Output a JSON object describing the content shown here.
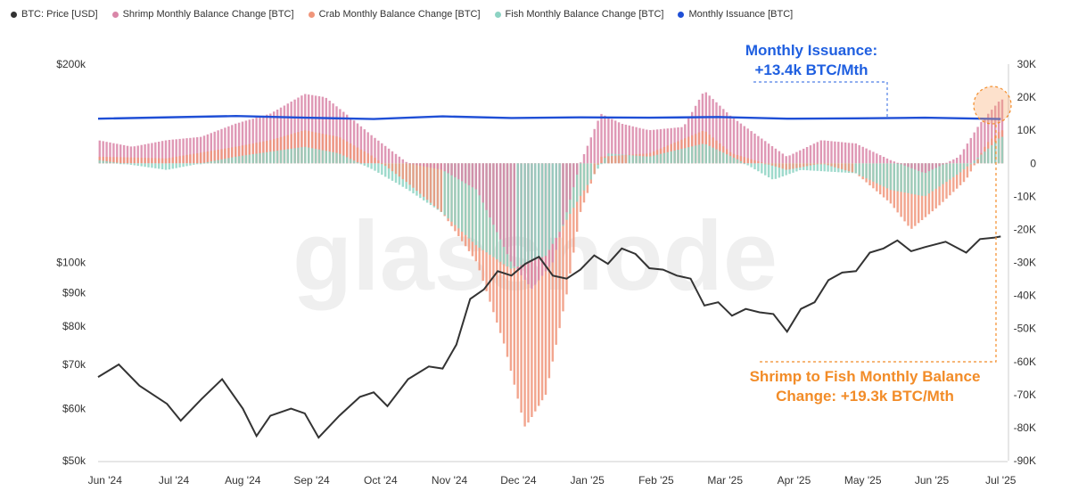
{
  "legend": [
    {
      "label": "BTC: Price [USD]",
      "color": "#333333"
    },
    {
      "label": "Shrimp Monthly Balance Change [BTC]",
      "color": "#d986a8"
    },
    {
      "label": "Crab Monthly Balance Change [BTC]",
      "color": "#f0957a"
    },
    {
      "label": "Fish Monthly Balance Change [BTC]",
      "color": "#8dd3c3"
    },
    {
      "label": "Monthly Issuance [BTC]",
      "color": "#1f4fd6"
    }
  ],
  "watermark": "glassnode",
  "annotations": {
    "issuance_line1": "Monthly Issuance:",
    "issuance_line2": "+13.4k BTC/Mth",
    "shrimp_line1": "Shrimp to Fish Monthly Balance",
    "shrimp_line2": "Change: +19.3k BTC/Mth"
  },
  "chart_data": {
    "type": "bar",
    "x_labels": [
      "Jun '24",
      "Jul '24",
      "Aug '24",
      "Sep '24",
      "Oct '24",
      "Nov '24",
      "Dec '24",
      "Jan '25",
      "Feb '25",
      "Mar '25",
      "Apr '25",
      "May '25",
      "Jun '25",
      "Jul '25"
    ],
    "left_axis": {
      "label": "BTC: Price [USD]",
      "scale": "log",
      "ticks": [
        {
          "value": 50000,
          "label": "$50k"
        },
        {
          "value": 60000,
          "label": "$60k"
        },
        {
          "value": 70000,
          "label": "$70k"
        },
        {
          "value": 80000,
          "label": "$80k"
        },
        {
          "value": 90000,
          "label": "$90k"
        },
        {
          "value": 100000,
          "label": "$100k"
        },
        {
          "value": 200000,
          "label": "$200k"
        }
      ],
      "range": [
        50000,
        200000
      ]
    },
    "right_axis": {
      "label": "Monthly Balance Change [BTC]",
      "scale": "linear",
      "ticks": [
        {
          "value": 30000,
          "label": "30K"
        },
        {
          "value": 20000,
          "label": "20K"
        },
        {
          "value": 10000,
          "label": "10K"
        },
        {
          "value": 0,
          "label": "0"
        },
        {
          "value": -10000,
          "label": "-10K"
        },
        {
          "value": -20000,
          "label": "-20K"
        },
        {
          "value": -30000,
          "label": "-30K"
        },
        {
          "value": -40000,
          "label": "-40K"
        },
        {
          "value": -50000,
          "label": "-50K"
        },
        {
          "value": -60000,
          "label": "-60K"
        },
        {
          "value": -70000,
          "label": "-70K"
        },
        {
          "value": -80000,
          "label": "-80K"
        },
        {
          "value": -90000,
          "label": "-90K"
        }
      ],
      "range": [
        -90000,
        30000
      ]
    },
    "price_series": {
      "name": "BTC: Price [USD]",
      "color": "#333333",
      "points": [
        {
          "t": 0.0,
          "v": 67000
        },
        {
          "t": 0.3,
          "v": 70000
        },
        {
          "t": 0.6,
          "v": 65000
        },
        {
          "t": 1.0,
          "v": 61000
        },
        {
          "t": 1.2,
          "v": 57500
        },
        {
          "t": 1.5,
          "v": 62000
        },
        {
          "t": 1.8,
          "v": 66500
        },
        {
          "t": 2.1,
          "v": 60000
        },
        {
          "t": 2.3,
          "v": 54500
        },
        {
          "t": 2.5,
          "v": 58500
        },
        {
          "t": 2.8,
          "v": 60000
        },
        {
          "t": 3.0,
          "v": 59000
        },
        {
          "t": 3.2,
          "v": 54200
        },
        {
          "t": 3.5,
          "v": 58500
        },
        {
          "t": 3.8,
          "v": 62500
        },
        {
          "t": 4.0,
          "v": 63500
        },
        {
          "t": 4.2,
          "v": 60500
        },
        {
          "t": 4.5,
          "v": 66500
        },
        {
          "t": 4.8,
          "v": 69500
        },
        {
          "t": 5.0,
          "v": 69000
        },
        {
          "t": 5.2,
          "v": 75000
        },
        {
          "t": 5.4,
          "v": 88000
        },
        {
          "t": 5.6,
          "v": 91000
        },
        {
          "t": 5.8,
          "v": 97000
        },
        {
          "t": 6.0,
          "v": 95500
        },
        {
          "t": 6.2,
          "v": 99500
        },
        {
          "t": 6.4,
          "v": 102000
        },
        {
          "t": 6.6,
          "v": 95500
        },
        {
          "t": 6.8,
          "v": 94500
        },
        {
          "t": 7.0,
          "v": 97500
        },
        {
          "t": 7.2,
          "v": 102500
        },
        {
          "t": 7.4,
          "v": 99500
        },
        {
          "t": 7.6,
          "v": 105000
        },
        {
          "t": 7.8,
          "v": 103000
        },
        {
          "t": 8.0,
          "v": 98000
        },
        {
          "t": 8.2,
          "v": 97500
        },
        {
          "t": 8.4,
          "v": 95500
        },
        {
          "t": 8.6,
          "v": 94500
        },
        {
          "t": 8.8,
          "v": 86000
        },
        {
          "t": 9.0,
          "v": 87000
        },
        {
          "t": 9.2,
          "v": 83000
        },
        {
          "t": 9.4,
          "v": 85000
        },
        {
          "t": 9.6,
          "v": 84000
        },
        {
          "t": 9.8,
          "v": 83500
        },
        {
          "t": 10.0,
          "v": 78500
        },
        {
          "t": 10.2,
          "v": 85000
        },
        {
          "t": 10.4,
          "v": 87000
        },
        {
          "t": 10.6,
          "v": 94000
        },
        {
          "t": 10.8,
          "v": 96500
        },
        {
          "t": 11.0,
          "v": 97000
        },
        {
          "t": 11.2,
          "v": 103500
        },
        {
          "t": 11.4,
          "v": 105000
        },
        {
          "t": 11.6,
          "v": 108000
        },
        {
          "t": 11.8,
          "v": 104000
        },
        {
          "t": 12.0,
          "v": 105500
        },
        {
          "t": 12.3,
          "v": 107500
        },
        {
          "t": 12.6,
          "v": 103500
        },
        {
          "t": 12.8,
          "v": 108500
        },
        {
          "t": 13.0,
          "v": 109000
        },
        {
          "t": 13.1,
          "v": 109500
        }
      ]
    },
    "issuance_series": {
      "name": "Monthly Issuance [BTC]",
      "color": "#1f4fd6",
      "points": [
        {
          "t": 0.0,
          "v": 13500
        },
        {
          "t": 2.0,
          "v": 14300
        },
        {
          "t": 3.0,
          "v": 13800
        },
        {
          "t": 4.0,
          "v": 13400
        },
        {
          "t": 5.0,
          "v": 14200
        },
        {
          "t": 6.0,
          "v": 13700
        },
        {
          "t": 7.0,
          "v": 13900
        },
        {
          "t": 8.0,
          "v": 13800
        },
        {
          "t": 9.0,
          "v": 14000
        },
        {
          "t": 10.0,
          "v": 13500
        },
        {
          "t": 11.0,
          "v": 13600
        },
        {
          "t": 12.0,
          "v": 13800
        },
        {
          "t": 13.1,
          "v": 13400
        }
      ]
    },
    "cohort_series": [
      {
        "name": "Shrimp Monthly Balance Change [BTC]",
        "color": "#d986a8",
        "points": [
          {
            "t": 0.0,
            "v": 7000
          },
          {
            "t": 0.5,
            "v": 5000
          },
          {
            "t": 1.0,
            "v": 7000
          },
          {
            "t": 1.5,
            "v": 8000
          },
          {
            "t": 2.0,
            "v": 12000
          },
          {
            "t": 2.5,
            "v": 15000
          },
          {
            "t": 3.0,
            "v": 21000
          },
          {
            "t": 3.3,
            "v": 20000
          },
          {
            "t": 3.6,
            "v": 15000
          },
          {
            "t": 4.0,
            "v": 8000
          },
          {
            "t": 4.5,
            "v": 0
          },
          {
            "t": 5.0,
            "v": -2000
          },
          {
            "t": 5.5,
            "v": -8000
          },
          {
            "t": 6.0,
            "v": -30000
          },
          {
            "t": 6.3,
            "v": -38000
          },
          {
            "t": 6.6,
            "v": -30000
          },
          {
            "t": 7.0,
            "v": 0
          },
          {
            "t": 7.3,
            "v": 15000
          },
          {
            "t": 7.6,
            "v": 12000
          },
          {
            "t": 8.0,
            "v": 10000
          },
          {
            "t": 8.5,
            "v": 11000
          },
          {
            "t": 8.8,
            "v": 22000
          },
          {
            "t": 9.2,
            "v": 14000
          },
          {
            "t": 9.6,
            "v": 8000
          },
          {
            "t": 10.0,
            "v": 2000
          },
          {
            "t": 10.5,
            "v": 7000
          },
          {
            "t": 11.0,
            "v": 6000
          },
          {
            "t": 11.5,
            "v": 1000
          },
          {
            "t": 12.0,
            "v": -3000
          },
          {
            "t": 12.5,
            "v": 2000
          },
          {
            "t": 12.8,
            "v": 12000
          },
          {
            "t": 13.1,
            "v": 19300
          }
        ]
      },
      {
        "name": "Crab Monthly Balance Change [BTC]",
        "color": "#f0957a",
        "points": [
          {
            "t": 0.0,
            "v": 2000
          },
          {
            "t": 1.0,
            "v": 1500
          },
          {
            "t": 2.0,
            "v": 5000
          },
          {
            "t": 2.5,
            "v": 7000
          },
          {
            "t": 3.0,
            "v": 10000
          },
          {
            "t": 3.5,
            "v": 8000
          },
          {
            "t": 4.0,
            "v": 2000
          },
          {
            "t": 4.5,
            "v": -6000
          },
          {
            "t": 5.0,
            "v": -15000
          },
          {
            "t": 5.5,
            "v": -30000
          },
          {
            "t": 5.9,
            "v": -55000
          },
          {
            "t": 6.2,
            "v": -80000
          },
          {
            "t": 6.5,
            "v": -70000
          },
          {
            "t": 6.8,
            "v": -40000
          },
          {
            "t": 7.0,
            "v": -15000
          },
          {
            "t": 7.3,
            "v": 2000
          },
          {
            "t": 8.0,
            "v": 3000
          },
          {
            "t": 8.8,
            "v": 10000
          },
          {
            "t": 9.2,
            "v": 3000
          },
          {
            "t": 10.0,
            "v": -2000
          },
          {
            "t": 10.5,
            "v": 0
          },
          {
            "t": 11.0,
            "v": -3000
          },
          {
            "t": 11.5,
            "v": -12000
          },
          {
            "t": 11.8,
            "v": -20000
          },
          {
            "t": 12.2,
            "v": -13000
          },
          {
            "t": 12.6,
            "v": -5000
          },
          {
            "t": 12.9,
            "v": 6000
          },
          {
            "t": 13.1,
            "v": 10000
          }
        ]
      },
      {
        "name": "Fish Monthly Balance Change [BTC]",
        "color": "#8dd3c3",
        "points": [
          {
            "t": 0.0,
            "v": 1000
          },
          {
            "t": 1.0,
            "v": -2000
          },
          {
            "t": 2.0,
            "v": 2000
          },
          {
            "t": 3.0,
            "v": 5000
          },
          {
            "t": 3.5,
            "v": 3000
          },
          {
            "t": 4.0,
            "v": -2000
          },
          {
            "t": 4.5,
            "v": -8000
          },
          {
            "t": 5.0,
            "v": -15000
          },
          {
            "t": 5.5,
            "v": -25000
          },
          {
            "t": 6.0,
            "v": -32000
          },
          {
            "t": 6.5,
            "v": -28000
          },
          {
            "t": 7.0,
            "v": -10000
          },
          {
            "t": 7.4,
            "v": 3000
          },
          {
            "t": 8.0,
            "v": 2000
          },
          {
            "t": 8.8,
            "v": 6000
          },
          {
            "t": 9.3,
            "v": 1000
          },
          {
            "t": 9.8,
            "v": -5000
          },
          {
            "t": 10.2,
            "v": -2000
          },
          {
            "t": 11.0,
            "v": -3000
          },
          {
            "t": 11.5,
            "v": -8000
          },
          {
            "t": 12.0,
            "v": -10000
          },
          {
            "t": 12.5,
            "v": -3000
          },
          {
            "t": 12.9,
            "v": 4000
          },
          {
            "t": 13.1,
            "v": 8000
          }
        ]
      }
    ],
    "grid": false,
    "legend_position": "top-left"
  }
}
